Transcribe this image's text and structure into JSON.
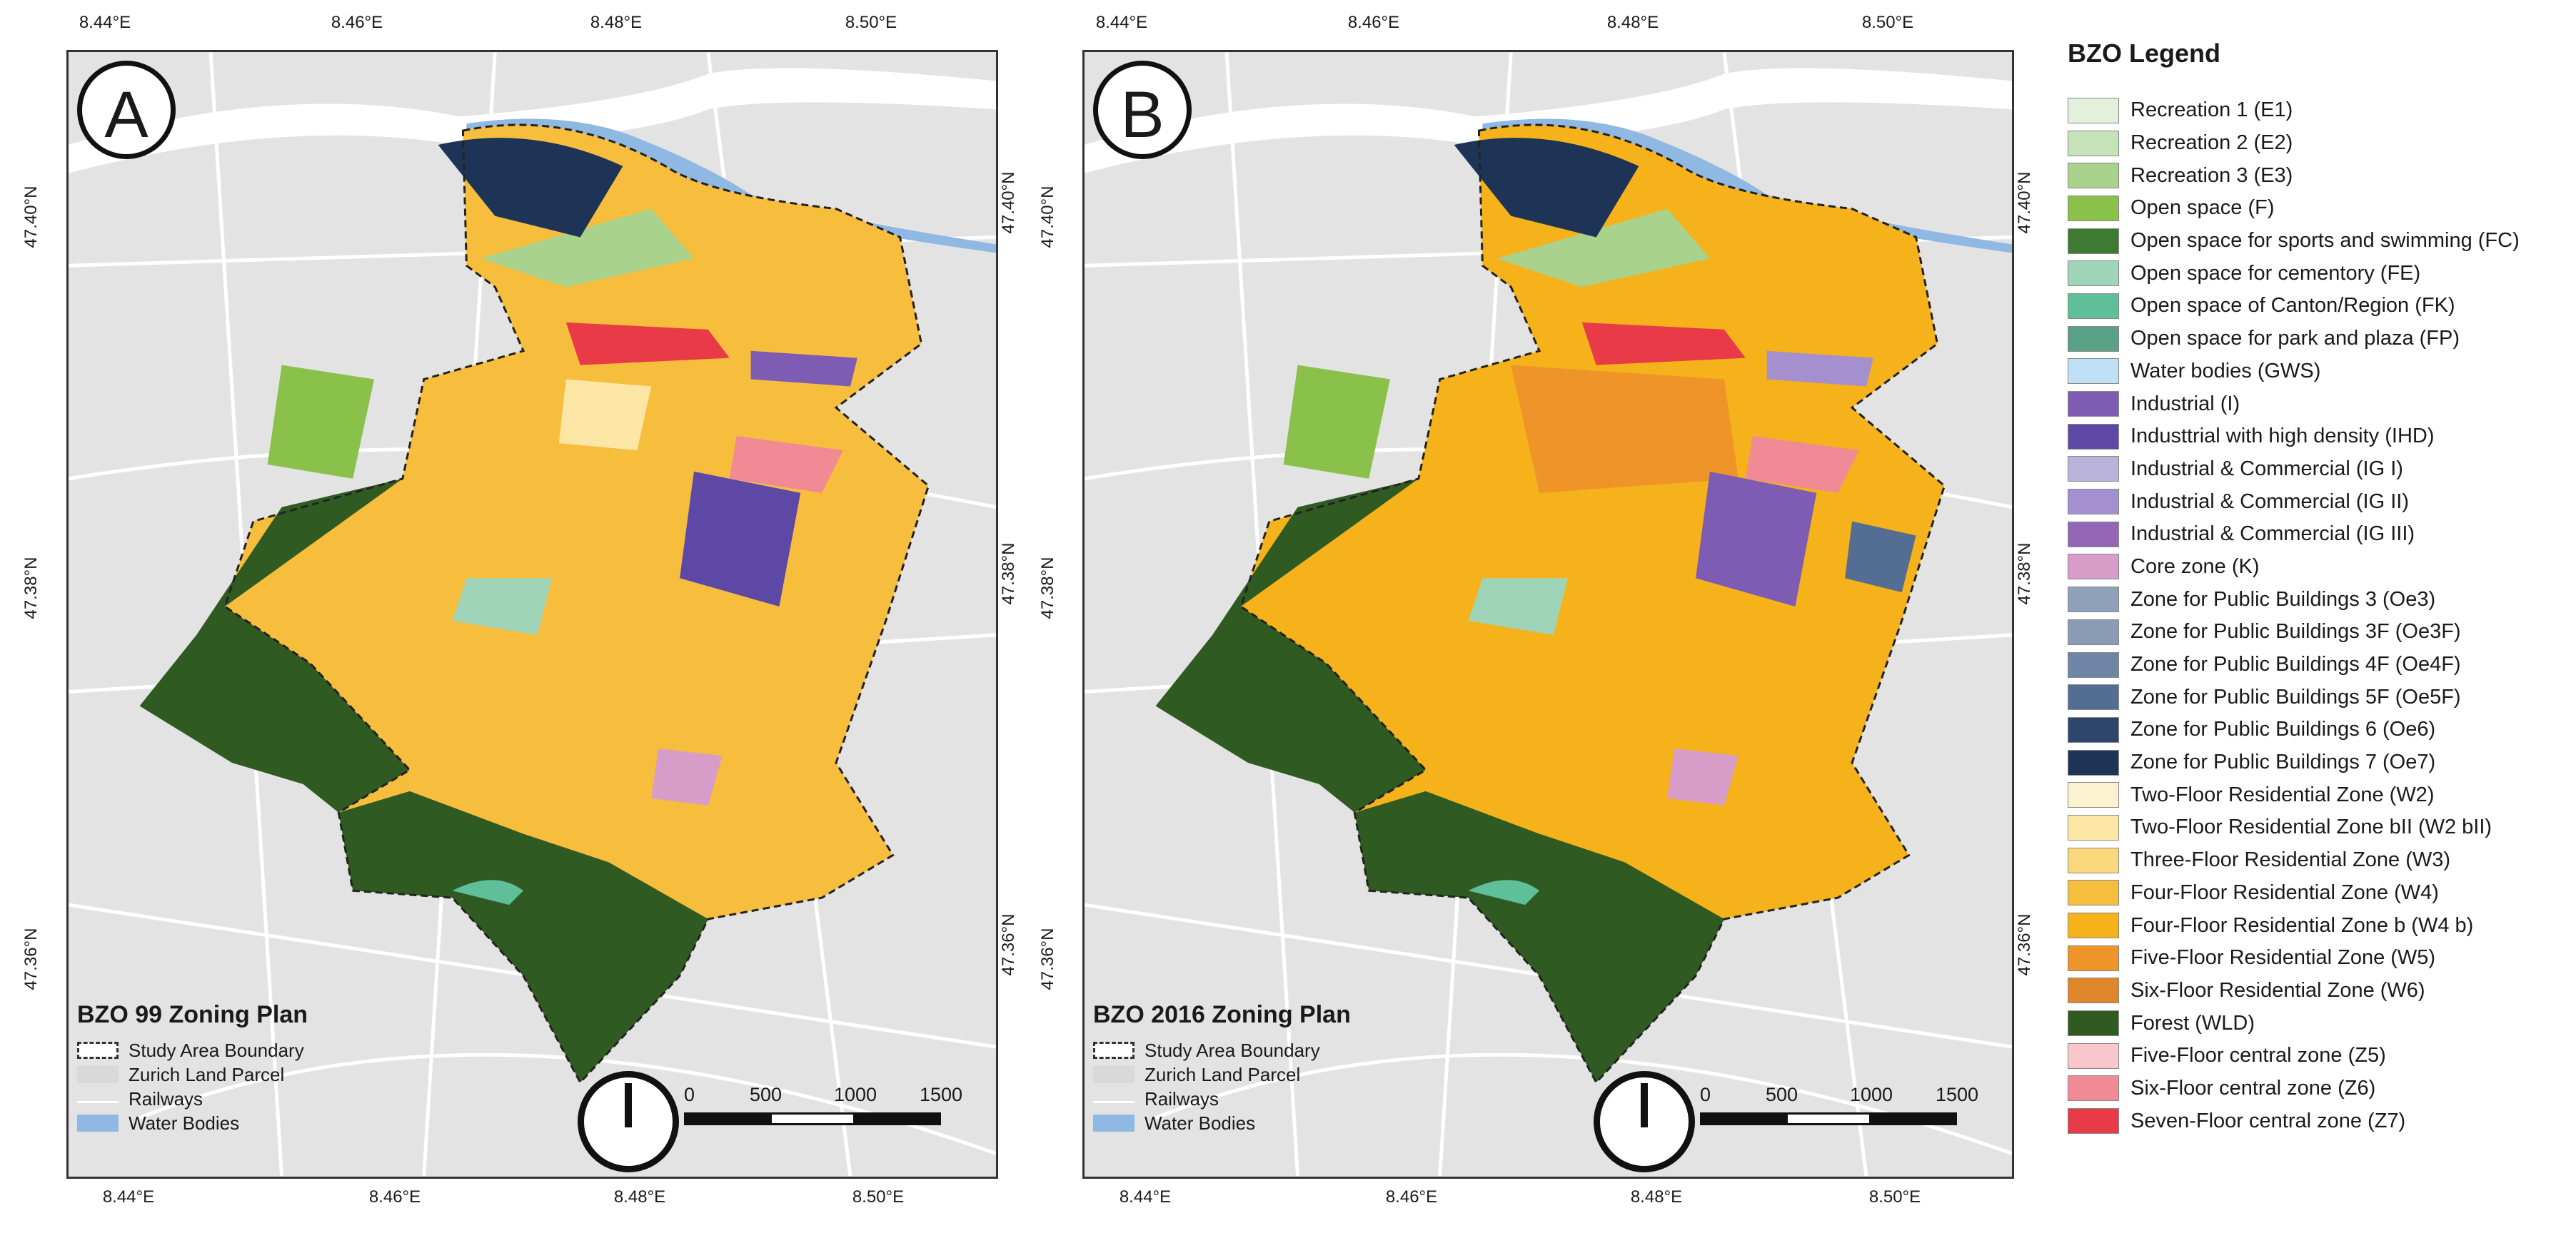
{
  "panels": [
    {
      "letter": "A",
      "title": "BZO 99 Zoning Plan"
    },
    {
      "letter": "B",
      "title": "BZO 2016 Zoning Plan"
    }
  ],
  "axis_ticks": {
    "lon": [
      "8.44°E",
      "8.46°E",
      "8.48°E",
      "8.50°E"
    ],
    "lat": [
      "47.40°N",
      "47.38°N",
      "47.36°N"
    ]
  },
  "mini_legend": [
    {
      "label": "Study Area Boundary",
      "style": "dashed",
      "color": "#ffffff"
    },
    {
      "label": "Zurich Land Parcel",
      "style": "fill",
      "color": "#d9d9d9"
    },
    {
      "label": "Railways",
      "style": "line",
      "color": "#ffffff"
    },
    {
      "label": "Water Bodies",
      "style": "fill",
      "color": "#8fb9e3"
    }
  ],
  "scalebar": {
    "labels": [
      "0",
      "500",
      "1000",
      "1500 m"
    ]
  },
  "legend": {
    "title": "BZO Legend",
    "items": [
      {
        "label": "Recreation 1 (E1)",
        "color": "#e3f0dc"
      },
      {
        "label": "Recreation 2 (E2)",
        "color": "#c6e2b8"
      },
      {
        "label": "Recreation 3 (E3)",
        "color": "#a9d28c"
      },
      {
        "label": "Open space (F)",
        "color": "#8ac14a"
      },
      {
        "label": "Open space for sports and swimming (FC)",
        "color": "#3f7a32"
      },
      {
        "label": "Open space for cementory (FE)",
        "color": "#9fd4b8"
      },
      {
        "label": "Open space of Canton/Region (FK)",
        "color": "#5fbf98"
      },
      {
        "label": "Open space for park and plaza (FP)",
        "color": "#5aa287"
      },
      {
        "label": "Water bodies (GWS)",
        "color": "#bfe0f5"
      },
      {
        "label": "Industrial (I)",
        "color": "#7e5cb4"
      },
      {
        "label": "Industtrial with high density (IHD)",
        "color": "#5e48a6"
      },
      {
        "label": "Industrial & Commercial (IG I)",
        "color": "#b9b3da"
      },
      {
        "label": "Industrial & Commercial (IG II)",
        "color": "#a48fcf"
      },
      {
        "label": "Industrial & Commercial (IG III)",
        "color": "#9366b5"
      },
      {
        "label": "Core zone (K)",
        "color": "#d89cc8"
      },
      {
        "label": "Zone for Public Buildings 3 (Oe3)",
        "color": "#8fa1b8"
      },
      {
        "label": "Zone for Public Buildings 3F (Oe3F)",
        "color": "#8a9cb4"
      },
      {
        "label": "Zone for Public Buildings 4F (Oe4F)",
        "color": "#6f85a6"
      },
      {
        "label": "Zone for Public Buildings 5F (Oe5F)",
        "color": "#546d92"
      },
      {
        "label": "Zone for Public Buildings 6 (Oe6)",
        "color": "#2e456b"
      },
      {
        "label": "Zone for Public Buildings 7 (Oe7)",
        "color": "#1e3457"
      },
      {
        "label": "Two-Floor Residential Zone (W2)",
        "color": "#fbf2cf"
      },
      {
        "label": "Two-Floor Residential Zone bII (W2 bII)",
        "color": "#fbe6a6"
      },
      {
        "label": "Three-Floor Residential Zone  (W3)",
        "color": "#f9d77a"
      },
      {
        "label": "Four-Floor Residential Zone (W4)",
        "color": "#f7be3d"
      },
      {
        "label": "Four-Floor Residential Zone b (W4 b)",
        "color": "#f5b21a"
      },
      {
        "label": "Five-Floor Residential Zone (W5)",
        "color": "#ef9429"
      },
      {
        "label": "Six-Floor Residential Zone (W6)",
        "color": "#e0862a"
      },
      {
        "label": "Forest (WLD)",
        "color": "#2f5a22"
      },
      {
        "label": "Five-Floor central zone (Z5)",
        "color": "#f9c6cb"
      },
      {
        "label": "Six-Floor central zone (Z6)",
        "color": "#f08a94"
      },
      {
        "label": "Seven-Floor central zone (Z7)",
        "color": "#e83a47"
      }
    ]
  }
}
